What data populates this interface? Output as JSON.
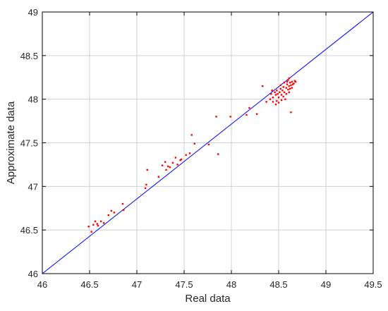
{
  "chart_data": {
    "type": "scatter",
    "title": "",
    "xlabel": "Real data",
    "ylabel": "Approximate data",
    "xlim": [
      46,
      49.5
    ],
    "ylim": [
      46,
      49
    ],
    "xticks": [
      "46",
      "46.5",
      "47",
      "47.5",
      "48",
      "48.5",
      "49",
      "49.5"
    ],
    "yticks": [
      "46",
      "46.5",
      "47",
      "47.5",
      "48",
      "48.5",
      "49"
    ],
    "grid": true,
    "colors": {
      "points": "#ff0000",
      "reference_line": "#0000ff",
      "grid": "#d0d0d0",
      "axes": "#000000"
    },
    "reference_line": {
      "x": [
        46,
        49.5
      ],
      "y": [
        46,
        49
      ]
    },
    "points": [
      [
        46.49,
        46.54
      ],
      [
        46.52,
        46.48
      ],
      [
        46.54,
        46.56
      ],
      [
        46.56,
        46.6
      ],
      [
        46.58,
        46.57
      ],
      [
        46.59,
        46.55
      ],
      [
        46.62,
        46.6
      ],
      [
        46.65,
        46.58
      ],
      [
        46.7,
        46.67
      ],
      [
        46.73,
        46.72
      ],
      [
        46.76,
        46.7
      ],
      [
        46.85,
        46.8
      ],
      [
        46.86,
        46.73
      ],
      [
        47.09,
        46.98
      ],
      [
        47.1,
        47.02
      ],
      [
        47.11,
        47.19
      ],
      [
        47.23,
        47.11
      ],
      [
        47.27,
        47.24
      ],
      [
        47.3,
        47.28
      ],
      [
        47.31,
        47.19
      ],
      [
        47.33,
        47.23
      ],
      [
        47.35,
        47.22
      ],
      [
        47.38,
        47.27
      ],
      [
        47.41,
        47.33
      ],
      [
        47.43,
        47.25
      ],
      [
        47.46,
        47.3
      ],
      [
        47.47,
        47.31
      ],
      [
        47.52,
        47.36
      ],
      [
        47.56,
        47.38
      ],
      [
        47.58,
        47.59
      ],
      [
        47.61,
        47.49
      ],
      [
        47.76,
        47.48
      ],
      [
        47.84,
        47.8
      ],
      [
        47.86,
        47.37
      ],
      [
        47.99,
        47.8
      ],
      [
        48.16,
        47.82
      ],
      [
        48.19,
        47.9
      ],
      [
        48.27,
        47.83
      ],
      [
        48.33,
        48.15
      ],
      [
        48.37,
        47.97
      ],
      [
        48.41,
        48.0
      ],
      [
        48.42,
        48.06
      ],
      [
        48.44,
        48.02
      ],
      [
        48.46,
        48.08
      ],
      [
        48.47,
        48.05
      ],
      [
        48.48,
        47.98
      ],
      [
        48.48,
        48.1
      ],
      [
        48.49,
        48.06
      ],
      [
        48.5,
        48.02
      ],
      [
        48.5,
        47.96
      ],
      [
        48.51,
        48.08
      ],
      [
        48.52,
        48.12
      ],
      [
        48.53,
        48.05
      ],
      [
        48.53,
        47.99
      ],
      [
        48.54,
        48.1
      ],
      [
        48.55,
        48.03
      ],
      [
        48.55,
        48.14
      ],
      [
        48.56,
        48.08
      ],
      [
        48.57,
        48.0
      ],
      [
        48.58,
        48.13
      ],
      [
        48.58,
        48.06
      ],
      [
        48.59,
        48.17
      ],
      [
        48.6,
        48.11
      ],
      [
        48.6,
        48.22
      ],
      [
        48.61,
        48.15
      ],
      [
        48.61,
        48.08
      ],
      [
        48.62,
        48.19
      ],
      [
        48.62,
        48.12
      ],
      [
        48.63,
        48.16
      ],
      [
        48.63,
        47.85
      ],
      [
        48.64,
        48.2
      ],
      [
        48.64,
        48.13
      ],
      [
        48.65,
        48.17
      ],
      [
        48.66,
        48.18
      ],
      [
        48.67,
        48.21
      ],
      [
        48.68,
        48.2
      ],
      [
        48.44,
        47.97
      ],
      [
        48.47,
        47.94
      ],
      [
        48.52,
        48.16
      ],
      [
        48.56,
        48.19
      ],
      [
        48.59,
        48.2
      ],
      [
        48.61,
        48.24
      ],
      [
        48.43,
        48.1
      ]
    ]
  }
}
